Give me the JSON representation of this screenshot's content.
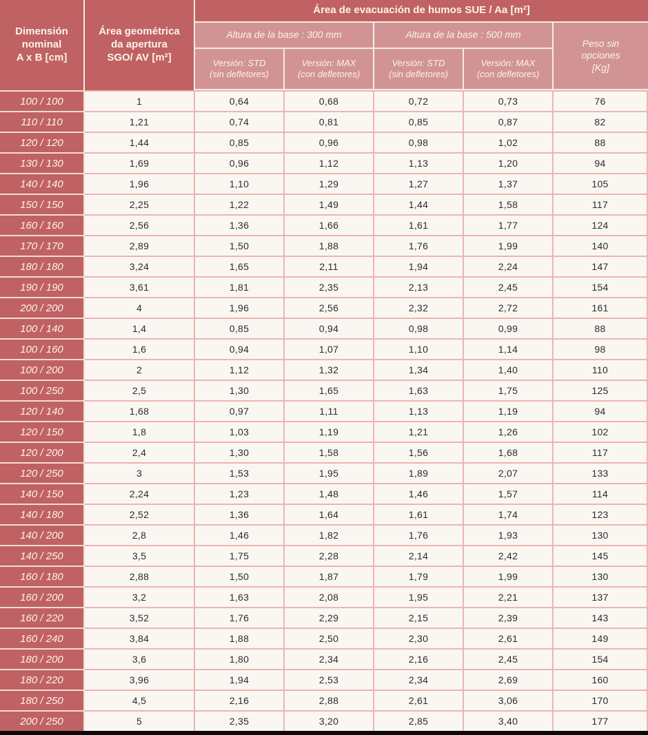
{
  "table": {
    "header": {
      "dimension": "Dimensión\nnominal\nA x B [cm]",
      "geometric_area": "Área geométrica\nda apertura\nSGO/ AV [m²]",
      "evacuation_group": "Área de evacuación de humos SUE / Aa [m²]",
      "base_300": "Altura de la base : 300 mm",
      "base_500": "Altura de la base : 500 mm",
      "version_std": "Versión: STD\n(sin defletores)",
      "version_max": "Versión: MAX\n(con defletores)",
      "weight": "Peso sin\nopciones\n[Kg]"
    },
    "columns": [
      "Dimensión nominal A x B [cm]",
      "Área geométrica da apertura SGO/ AV [m²]",
      "300 mm Versión: STD (sin defletores)",
      "300 mm Versión: MAX (con defletores)",
      "500 mm Versión: STD (sin defletores)",
      "500 mm Versión: MAX (con defletores)",
      "Peso sin opciones [Kg]"
    ],
    "rows": [
      [
        "100 / 100",
        "1",
        "0,64",
        "0,68",
        "0,72",
        "0,73",
        "76"
      ],
      [
        "110 / 110",
        "1,21",
        "0,74",
        "0,81",
        "0,85",
        "0,87",
        "82"
      ],
      [
        "120 / 120",
        "1,44",
        "0,85",
        "0,96",
        "0,98",
        "1,02",
        "88"
      ],
      [
        "130 / 130",
        "1,69",
        "0,96",
        "1,12",
        "1,13",
        "1,20",
        "94"
      ],
      [
        "140 / 140",
        "1,96",
        "1,10",
        "1,29",
        "1,27",
        "1,37",
        "105"
      ],
      [
        "150 / 150",
        "2,25",
        "1,22",
        "1,49",
        "1,44",
        "1,58",
        "117"
      ],
      [
        "160 / 160",
        "2,56",
        "1,36",
        "1,66",
        "1,61",
        "1,77",
        "124"
      ],
      [
        "170 / 170",
        "2,89",
        "1,50",
        "1,88",
        "1,76",
        "1,99",
        "140"
      ],
      [
        "180 / 180",
        "3,24",
        "1,65",
        "2,11",
        "1,94",
        "2,24",
        "147"
      ],
      [
        "190 / 190",
        "3,61",
        "1,81",
        "2,35",
        "2,13",
        "2,45",
        "154"
      ],
      [
        "200 / 200",
        "4",
        "1,96",
        "2,56",
        "2,32",
        "2,72",
        "161"
      ],
      [
        "100 / 140",
        "1,4",
        "0,85",
        "0,94",
        "0,98",
        "0,99",
        "88"
      ],
      [
        "100 / 160",
        "1,6",
        "0,94",
        "1,07",
        "1,10",
        "1,14",
        "98"
      ],
      [
        "100 / 200",
        "2",
        "1,12",
        "1,32",
        "1,34",
        "1,40",
        "110"
      ],
      [
        "100 / 250",
        "2,5",
        "1,30",
        "1,65",
        "1,63",
        "1,75",
        "125"
      ],
      [
        "120 / 140",
        "1,68",
        "0,97",
        "1,11",
        "1,13",
        "1,19",
        "94"
      ],
      [
        "120 / 150",
        "1,8",
        "1,03",
        "1,19",
        "1,21",
        "1,26",
        "102"
      ],
      [
        "120 / 200",
        "2,4",
        "1,30",
        "1,58",
        "1,56",
        "1,68",
        "117"
      ],
      [
        "120 / 250",
        "3",
        "1,53",
        "1,95",
        "1,89",
        "2,07",
        "133"
      ],
      [
        "140 / 150",
        "2,24",
        "1,23",
        "1,48",
        "1,46",
        "1,57",
        "114"
      ],
      [
        "140 / 180",
        "2,52",
        "1,36",
        "1,64",
        "1,61",
        "1,74",
        "123"
      ],
      [
        "140 / 200",
        "2,8",
        "1,46",
        "1,82",
        "1,76",
        "1,93",
        "130"
      ],
      [
        "140 / 250",
        "3,5",
        "1,75",
        "2,28",
        "2,14",
        "2,42",
        "145"
      ],
      [
        "160 / 180",
        "2,88",
        "1,50",
        "1,87",
        "1,79",
        "1,99",
        "130"
      ],
      [
        "160 / 200",
        "3,2",
        "1,63",
        "2,08",
        "1,95",
        "2,21",
        "137"
      ],
      [
        "160 / 220",
        "3,52",
        "1,76",
        "2,29",
        "2,15",
        "2,39",
        "143"
      ],
      [
        "160 / 240",
        "3,84",
        "1,88",
        "2,50",
        "2,30",
        "2,61",
        "149"
      ],
      [
        "180 / 200",
        "3,6",
        "1,80",
        "2,34",
        "2,16",
        "2,45",
        "154"
      ],
      [
        "180 / 220",
        "3,96",
        "1,94",
        "2,53",
        "2,34",
        "2,69",
        "160"
      ],
      [
        "180 / 250",
        "4,5",
        "2,16",
        "2,88",
        "2,61",
        "3,06",
        "170"
      ],
      [
        "200 / 250",
        "5",
        "2,35",
        "3,20",
        "2,85",
        "3,40",
        "177"
      ]
    ]
  },
  "colors": {
    "dark_red": "#c06263",
    "medium_pink": "#d29394",
    "header_text": "#fbf3ec",
    "header_line": "#f6ece6",
    "dim_line": "#f3dcd6",
    "cell_bg": "#faf7f2",
    "grid_pink": "#eeb4b1",
    "text_dark": "#2b2b28",
    "bottom_bar": "#0a0a0a"
  }
}
